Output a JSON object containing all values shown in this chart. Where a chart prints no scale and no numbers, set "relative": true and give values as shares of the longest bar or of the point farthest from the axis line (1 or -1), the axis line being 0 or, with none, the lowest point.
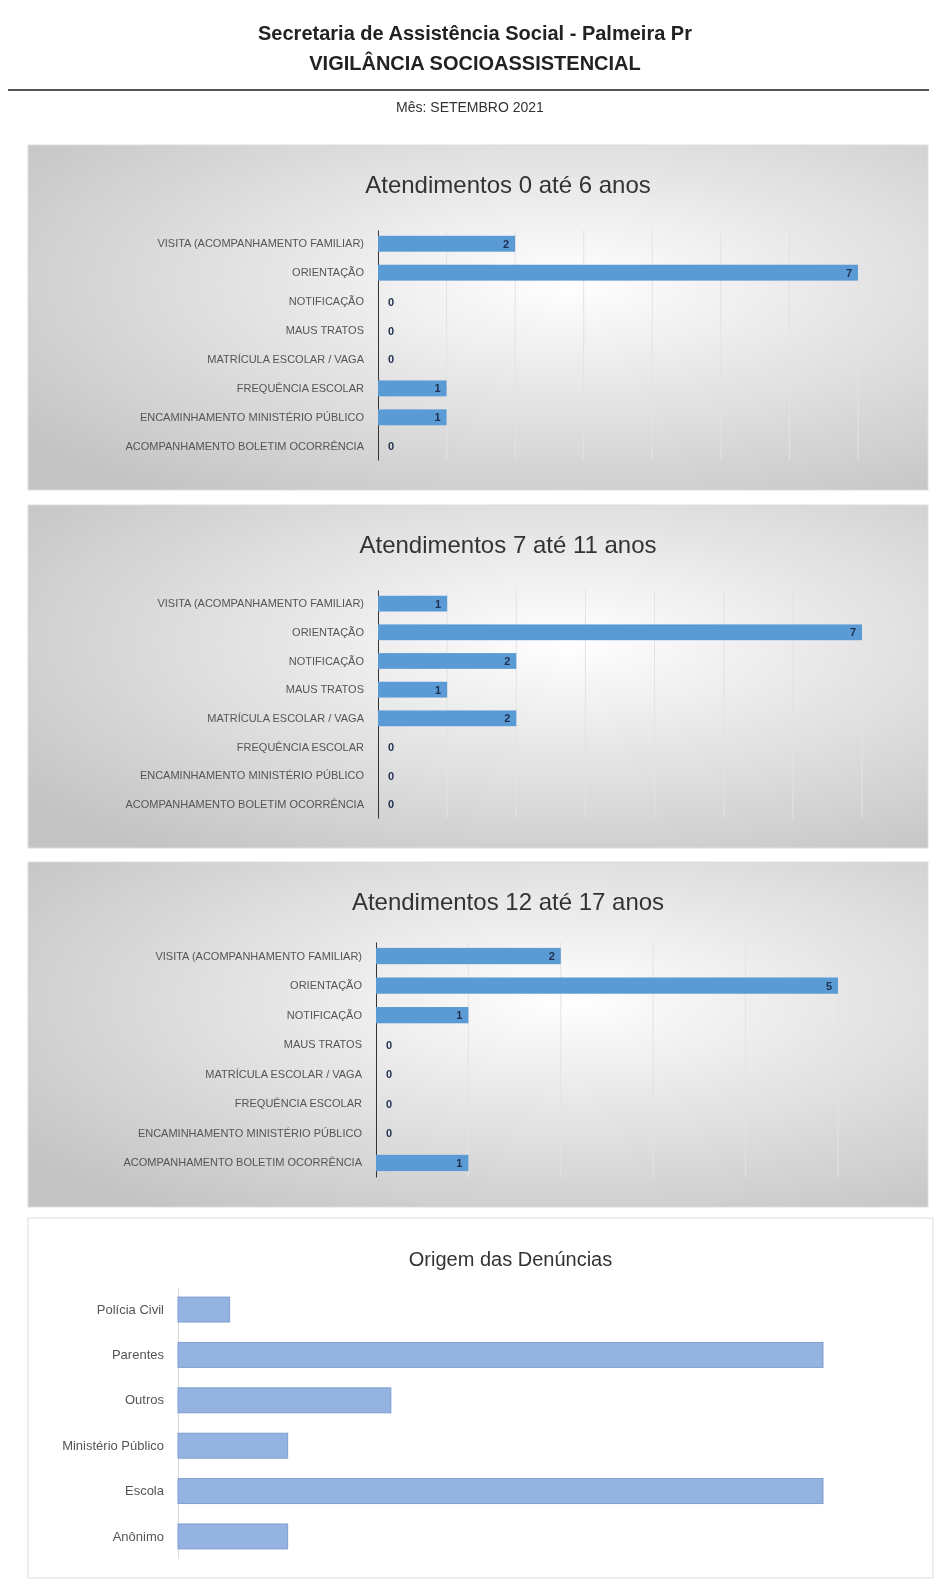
{
  "chart_data": [
    {
      "type": "other",
      "title": "Secretaria de Assistência Social - Palmeira Pr",
      "subtitle": "VIGILÂNCIA SOCIOASSISTENCIAL",
      "annotations": [
        "Mês: SETEMBRO 2021"
      ]
    },
    {
      "type": "bar",
      "orientation": "horizontal",
      "title": "Atendimentos 0 até 6 anos",
      "categories": [
        "VISITA (ACOMPANHAMENTO FAMILIAR)",
        "ORIENTAÇÃO",
        "NOTIFICAÇÃO",
        "MAUS TRATOS",
        "MATRÍCULA ESCOLAR / VAGA",
        "FREQUÊNCIA ESCOLAR",
        "ENCAMINHAMENTO MINISTÉRIO PÚBLICO",
        "ACOMPANHAMENTO BOLETIM OCORRÊNCIA"
      ],
      "values": [
        2,
        7,
        0,
        0,
        0,
        1,
        1,
        0
      ],
      "color": "#5b9bd5",
      "xlim": [
        0,
        7
      ],
      "xticks": [
        {
          "value": 1,
          "label": null
        },
        {
          "value": 2,
          "label": null
        },
        {
          "value": 3,
          "label": null
        },
        {
          "value": 4,
          "label": null
        },
        {
          "value": 5,
          "label": null
        },
        {
          "value": 6,
          "label": null
        },
        {
          "value": 7,
          "label": null
        }
      ],
      "grid": "x",
      "tick_labels": "y",
      "data_labels": true
    },
    {
      "type": "bar",
      "orientation": "horizontal",
      "title": "Atendimentos 7 até 11 anos",
      "categories": [
        "VISITA (ACOMPANHAMENTO FAMILIAR)",
        "ORIENTAÇÃO",
        "NOTIFICAÇÃO",
        "MAUS TRATOS",
        "MATRÍCULA ESCOLAR / VAGA",
        "FREQUÊNCIA ESCOLAR",
        "ENCAMINHAMENTO MINISTÉRIO PÚBLICO",
        "ACOMPANHAMENTO BOLETIM OCORRÊNCIA"
      ],
      "values": [
        1,
        7,
        2,
        1,
        2,
        0,
        0,
        0
      ],
      "color": "#5b9bd5",
      "xlim": [
        0,
        7
      ],
      "xticks": [
        {
          "value": 1,
          "label": null
        },
        {
          "value": 2,
          "label": null
        },
        {
          "value": 3,
          "label": null
        },
        {
          "value": 4,
          "label": null
        },
        {
          "value": 5,
          "label": null
        },
        {
          "value": 6,
          "label": null
        },
        {
          "value": 7,
          "label": null
        }
      ],
      "grid": "x",
      "tick_labels": "y",
      "data_labels": true
    },
    {
      "type": "bar",
      "orientation": "horizontal",
      "title": "Atendimentos 12 até 17 anos",
      "categories": [
        "VISITA (ACOMPANHAMENTO FAMILIAR)",
        "ORIENTAÇÃO",
        "NOTIFICAÇÃO",
        "MAUS TRATOS",
        "MATRÍCULA ESCOLAR / VAGA",
        "FREQUÊNCIA ESCOLAR",
        "ENCAMINHAMENTO MINISTÉRIO PÚBLICO",
        "ACOMPANHAMENTO BOLETIM OCORRÊNCIA"
      ],
      "values": [
        2,
        5,
        1,
        0,
        0,
        0,
        0,
        1
      ],
      "color": "#5b9bd5",
      "xlim": [
        0,
        5
      ],
      "xticks": [
        {
          "value": 1,
          "label": null
        },
        {
          "value": 2,
          "label": null
        },
        {
          "value": 3,
          "label": null
        },
        {
          "value": 4,
          "label": null
        },
        {
          "value": 5,
          "label": null
        }
      ],
      "grid": "x",
      "tick_labels": "y",
      "data_labels": true
    },
    {
      "type": "bar",
      "orientation": "horizontal",
      "title": "Origem das Denúncias",
      "categories": [
        "Polícia Civil",
        "Parentes",
        "Outros",
        "Ministério Público",
        "Escola",
        "Anônimo"
      ],
      "values": [
        0.08,
        1,
        0.33,
        0.17,
        1,
        0.17
      ],
      "color": "#95b3e0",
      "relative": true
    }
  ]
}
